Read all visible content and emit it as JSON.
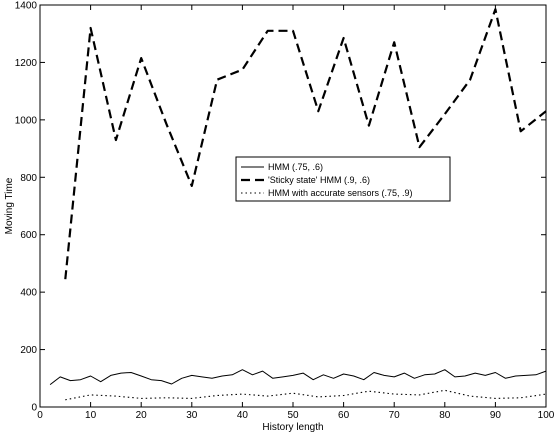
{
  "chart_data": {
    "type": "line",
    "title": "",
    "xlabel": "History length",
    "ylabel": "Moving Time",
    "xlim": [
      0,
      100
    ],
    "ylim": [
      0,
      1400
    ],
    "xticks": [
      0,
      10,
      20,
      30,
      40,
      50,
      60,
      70,
      80,
      90,
      100
    ],
    "yticks": [
      0,
      200,
      400,
      600,
      800,
      1000,
      1200,
      1400
    ],
    "grid": false,
    "legend_placement": "center",
    "series": [
      {
        "name": "HMM (.75, .6)",
        "style": "solid",
        "x": [
          2,
          4,
          6,
          8,
          10,
          12,
          14,
          16,
          18,
          20,
          22,
          24,
          26,
          28,
          30,
          32,
          34,
          36,
          38,
          40,
          42,
          44,
          46,
          48,
          50,
          52,
          54,
          56,
          58,
          60,
          62,
          64,
          66,
          68,
          70,
          72,
          74,
          76,
          78,
          80,
          82,
          84,
          86,
          88,
          90,
          92,
          94,
          96,
          98,
          100
        ],
        "y": [
          78,
          105,
          92,
          95,
          108,
          88,
          110,
          118,
          120,
          108,
          95,
          92,
          80,
          100,
          110,
          105,
          100,
          108,
          112,
          130,
          112,
          125,
          100,
          105,
          110,
          118,
          95,
          112,
          100,
          115,
          108,
          95,
          120,
          110,
          105,
          118,
          100,
          112,
          115,
          130,
          105,
          108,
          118,
          110,
          120,
          100,
          108,
          110,
          112,
          125
        ]
      },
      {
        "name": "'Sticky state' HMM (.9, .6)",
        "style": "dashed",
        "x": [
          5,
          10,
          15,
          20,
          25,
          30,
          35,
          40,
          45,
          50,
          55,
          60,
          65,
          70,
          75,
          80,
          85,
          90,
          95,
          100
        ],
        "y": [
          445,
          1320,
          930,
          1215,
          985,
          770,
          1140,
          1175,
          1310,
          1310,
          1030,
          1285,
          980,
          1270,
          905,
          1020,
          1140,
          1385,
          960,
          1030
        ]
      },
      {
        "name": "HMM with accurate sensors (.75, .9)",
        "style": "dotted",
        "x": [
          5,
          10,
          15,
          20,
          25,
          30,
          35,
          40,
          45,
          50,
          55,
          60,
          65,
          70,
          75,
          80,
          85,
          90,
          95,
          100
        ],
        "y": [
          25,
          42,
          38,
          30,
          32,
          30,
          40,
          45,
          38,
          48,
          35,
          40,
          55,
          45,
          42,
          58,
          38,
          30,
          32,
          45
        ]
      }
    ]
  }
}
